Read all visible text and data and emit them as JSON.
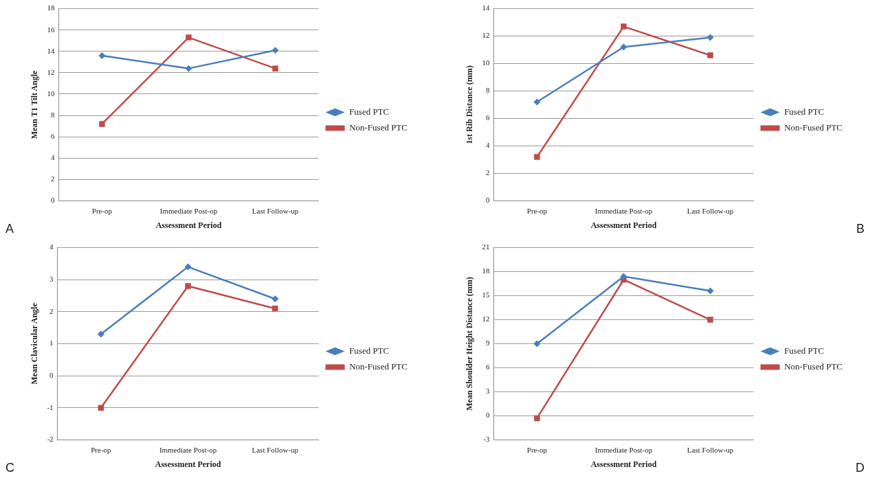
{
  "chart_data": [
    {
      "type": "line",
      "xlabel": "Assessment Period",
      "ylabel": "Mean T1 Tilt Angle",
      "categories": [
        "Pre-op",
        "Immediate Post-op",
        "Last Follow-up"
      ],
      "series": [
        {
          "name": "Fused PTC",
          "color": "#4a7ebb",
          "marker": "diamond",
          "values": [
            13.6,
            12.4,
            14.1
          ]
        },
        {
          "name": "Non-Fused PTC",
          "color": "#be4b48",
          "marker": "square",
          "values": [
            7.2,
            15.3,
            12.4
          ]
        }
      ],
      "ylim": [
        0,
        18
      ],
      "yticks": [
        0,
        2,
        4,
        6,
        8,
        10,
        12,
        14,
        16,
        18
      ],
      "grid": "y",
      "legend": "right",
      "annotations": [
        "A"
      ]
    },
    {
      "type": "line",
      "xlabel": "Assessment Period",
      "ylabel": "1st Rib Distance (mm)",
      "categories": [
        "Pre-op",
        "Immediate Post-op",
        "Last Follow-up"
      ],
      "series": [
        {
          "name": "Fused PTC",
          "color": "#4a7ebb",
          "marker": "diamond",
          "values": [
            7.2,
            11.2,
            11.9
          ]
        },
        {
          "name": "Non-Fused PTC",
          "color": "#be4b48",
          "marker": "square",
          "values": [
            3.2,
            12.7,
            10.6
          ]
        }
      ],
      "ylim": [
        0,
        14
      ],
      "yticks": [
        0,
        2,
        4,
        6,
        8,
        10,
        12,
        14
      ],
      "grid": "y",
      "legend": "right",
      "annotations": [
        "B"
      ]
    },
    {
      "type": "line",
      "xlabel": "Assessment Period",
      "ylabel": "Mean Clavicular Angle",
      "categories": [
        "Pre-op",
        "Immediate Post-op",
        "Last Follow-up"
      ],
      "series": [
        {
          "name": "Fused PTC",
          "color": "#4a7ebb",
          "marker": "diamond",
          "values": [
            1.3,
            3.4,
            2.4
          ]
        },
        {
          "name": "Non-Fused PTC",
          "color": "#be4b48",
          "marker": "square",
          "values": [
            -1.0,
            2.8,
            2.1
          ]
        }
      ],
      "ylim": [
        -2,
        4
      ],
      "yticks": [
        -2,
        -1,
        0,
        1,
        2,
        3,
        4
      ],
      "grid": "y",
      "legend": "right",
      "annotations": [
        "C"
      ]
    },
    {
      "type": "line",
      "xlabel": "Assessment Period",
      "ylabel": "Mean Shoulder Height Distance (mm)",
      "categories": [
        "Pre-op",
        "Immediate Post-op",
        "Last Follow-up"
      ],
      "series": [
        {
          "name": "Fused PTC",
          "color": "#4a7ebb",
          "marker": "diamond",
          "values": [
            9.0,
            17.4,
            15.6
          ]
        },
        {
          "name": "Non-Fused PTC",
          "color": "#be4b48",
          "marker": "square",
          "values": [
            -0.3,
            17.0,
            12.0
          ]
        }
      ],
      "ylim": [
        -3,
        21
      ],
      "yticks": [
        -3,
        0,
        3,
        6,
        9,
        12,
        15,
        18,
        21
      ],
      "grid": "y",
      "legend": "right",
      "annotations": [
        "D"
      ]
    }
  ]
}
